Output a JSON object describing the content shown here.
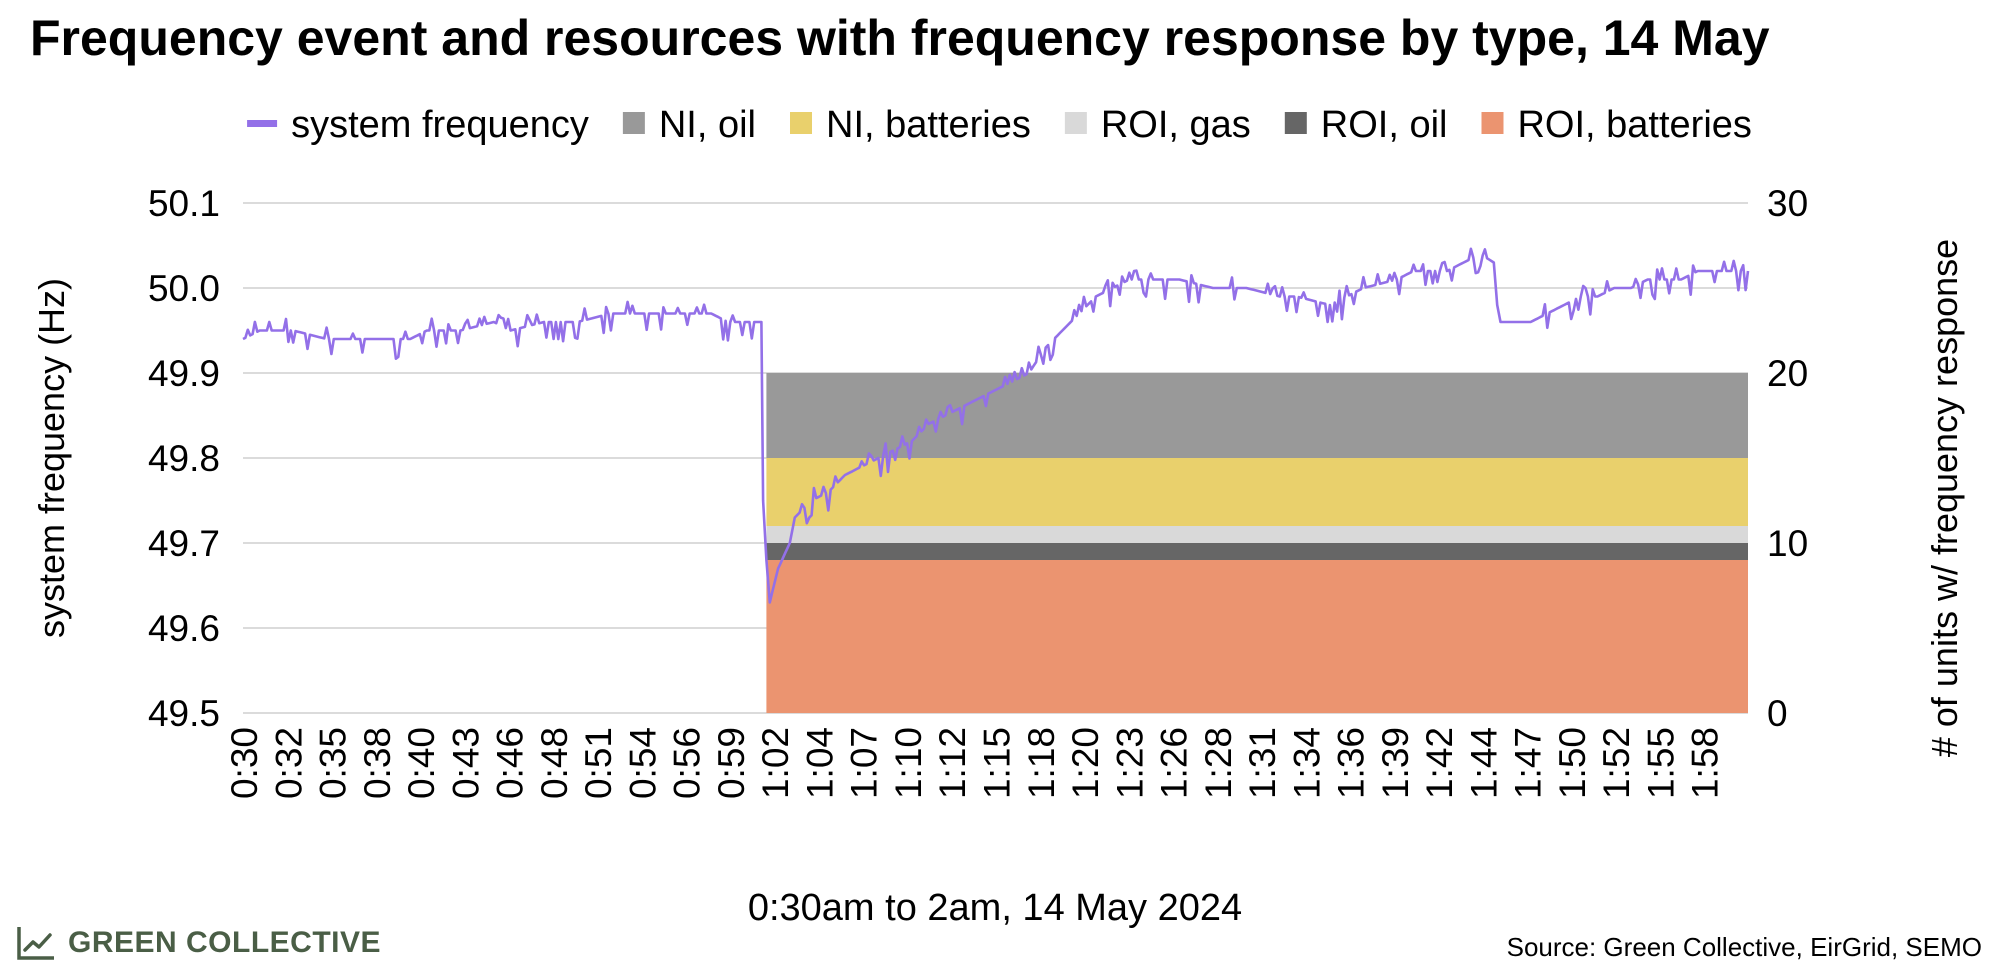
{
  "chart_data": {
    "type": "line",
    "title": "Frequency event and resources with frequency response by type, 14 May",
    "xlabel": "0:30am to 2am, 14 May 2024",
    "ylabel": "system frequency (Hz)",
    "y2label": "# of units w/ frequency response",
    "ylim": [
      49.5,
      50.1
    ],
    "y2lim": [
      0,
      30
    ],
    "yticks": [
      "49.5",
      "49.6",
      "49.7",
      "49.8",
      "49.9",
      "50.0",
      "50.1"
    ],
    "y2ticks": [
      "0",
      "10",
      "20",
      "30"
    ],
    "xlim_minutes": [
      30,
      120
    ],
    "xtick_labels": [
      "0:30",
      "0:32",
      "0:35",
      "0:38",
      "0:40",
      "0:43",
      "0:46",
      "0:48",
      "0:51",
      "0:54",
      "0:56",
      "0:59",
      "1:02",
      "1:04",
      "1:07",
      "1:10",
      "1:12",
      "1:15",
      "1:18",
      "1:20",
      "1:23",
      "1:26",
      "1:28",
      "1:31",
      "1:34",
      "1:36",
      "1:39",
      "1:42",
      "1:44",
      "1:47",
      "1:50",
      "1:52",
      "1:55",
      "1:58"
    ],
    "grid": true,
    "legend_position": "top",
    "series": [
      {
        "name": "system frequency",
        "kind": "line",
        "color": "#9370e8",
        "x_minutes": [
          30,
          31,
          32,
          33,
          35,
          36,
          38,
          40,
          41,
          43,
          45,
          46,
          48,
          50,
          52,
          54,
          56,
          58,
          59,
          61,
          61.1,
          61.3,
          61.5,
          62,
          62.7,
          63,
          64,
          65,
          66,
          67,
          68,
          69,
          70,
          71,
          72,
          73,
          74,
          75,
          76,
          77,
          78,
          79,
          80,
          81,
          82,
          83,
          84,
          86,
          88,
          90,
          92,
          93,
          95,
          96,
          97,
          99,
          100,
          101,
          102,
          103,
          104,
          104.8,
          105,
          105.2,
          106,
          107,
          108,
          109,
          110,
          111,
          112,
          113,
          114,
          115,
          116,
          117,
          118,
          119,
          120
        ],
        "y_hz": [
          49.94,
          49.95,
          49.95,
          49.95,
          49.94,
          49.94,
          49.94,
          49.94,
          49.95,
          49.95,
          49.96,
          49.95,
          49.96,
          49.96,
          49.97,
          49.97,
          49.97,
          49.97,
          49.96,
          49.96,
          49.75,
          49.68,
          49.63,
          49.67,
          49.7,
          49.73,
          49.75,
          49.76,
          49.78,
          49.79,
          49.8,
          49.81,
          49.82,
          49.84,
          49.85,
          49.86,
          49.87,
          49.88,
          49.89,
          49.9,
          49.93,
          49.95,
          49.97,
          49.99,
          50.0,
          50.01,
          50.01,
          50.01,
          50.0,
          50.0,
          49.99,
          49.99,
          49.98,
          49.99,
          50.0,
          50.01,
          50.02,
          50.02,
          50.02,
          50.03,
          50.04,
          50.03,
          49.98,
          49.96,
          49.96,
          49.96,
          49.97,
          49.98,
          49.99,
          49.99,
          50.0,
          50.0,
          50.01,
          50.01,
          50.01,
          50.02,
          50.02,
          50.02,
          50.02
        ]
      },
      {
        "name": "NI, oil",
        "kind": "stack",
        "color": "#999999",
        "x_start_minutes": 61.3,
        "value": 5
      },
      {
        "name": "NI, batteries",
        "kind": "stack",
        "color": "#e9d06c",
        "x_start_minutes": 61.3,
        "value": 4
      },
      {
        "name": "ROI, gas",
        "kind": "stack",
        "color": "#d9d9d9",
        "x_start_minutes": 61.3,
        "value": 1
      },
      {
        "name": "ROI, oil",
        "kind": "stack",
        "color": "#666666",
        "x_start_minutes": 61.3,
        "value": 1
      },
      {
        "name": "ROI, batteries",
        "kind": "stack",
        "color": "#eb9470",
        "x_start_minutes": 61.3,
        "value": 9
      }
    ]
  },
  "source": "Source: Green Collective, EirGrid, SEMO",
  "brand": {
    "name": "GREEN COLLECTIVE",
    "icon": "line-chart-icon",
    "color": "#4a5e46"
  }
}
